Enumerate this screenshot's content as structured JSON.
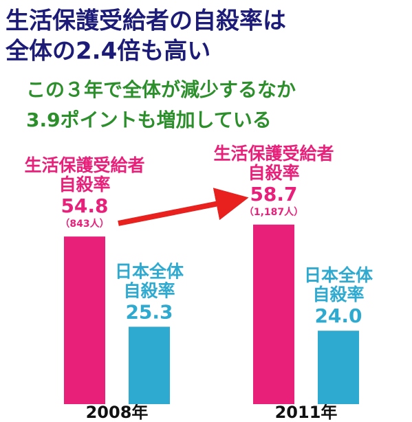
{
  "chart_data": {
    "type": "bar",
    "title": [
      "生活保護受給者の自殺率は",
      "全体の2.4倍も高い"
    ],
    "subtitle": [
      "この３年で全体が減少するなか",
      "3.9ポイントも増加している"
    ],
    "categories": [
      "2008年",
      "2011年"
    ],
    "series": [
      {
        "name": [
          "生活保護受給者",
          "自殺率"
        ],
        "color": "#e8207a",
        "values": [
          54.8,
          58.7
        ],
        "notes": [
          "（843人）",
          "（1,187人）"
        ]
      },
      {
        "name": [
          "日本全体",
          "自殺率"
        ],
        "color": "#2ea9cf",
        "values": [
          25.3,
          24.0
        ],
        "value_labels": [
          "25.3",
          "24.0"
        ]
      }
    ],
    "ylim": [
      0,
      60
    ]
  }
}
